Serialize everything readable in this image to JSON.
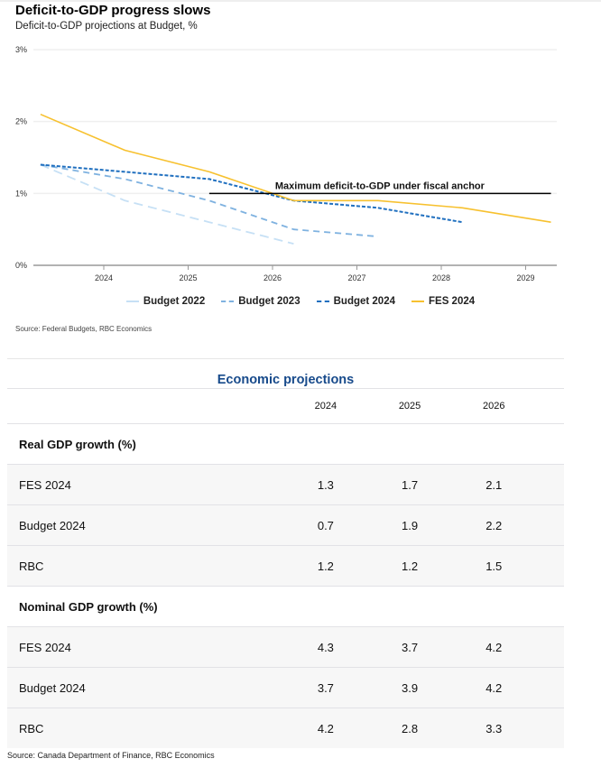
{
  "chart_data": {
    "type": "line",
    "title": "Deficit-to-GDP progress slows",
    "subtitle": "Deficit-to-GDP projections at Budget, %",
    "xlabel": "",
    "ylabel": "",
    "ylim": [
      0,
      3
    ],
    "xlim": [
      2023.25,
      2029.35
    ],
    "yticks": [
      0,
      1,
      2,
      3
    ],
    "ytick_labels": [
      "0%",
      "1%",
      "2%",
      "3%"
    ],
    "xticks": [
      2024,
      2025,
      2026,
      2027,
      2028,
      2029
    ],
    "xtick_labels": [
      "2024",
      "2025",
      "2026",
      "2027",
      "2028",
      "2029"
    ],
    "grid": true,
    "legend_position": "bottom-center",
    "series": [
      {
        "name": "Budget 2022",
        "color": "#c6e0f5",
        "dash": "long-dash",
        "x": [
          2023.25,
          2024.25,
          2025.25,
          2026.25
        ],
        "values": [
          1.4,
          0.9,
          0.6,
          0.3
        ]
      },
      {
        "name": "Budget 2023",
        "color": "#7fb2e0",
        "dash": "dash",
        "x": [
          2023.25,
          2024.25,
          2025.25,
          2026.25,
          2027.25
        ],
        "values": [
          1.4,
          1.2,
          0.9,
          0.5,
          0.4
        ]
      },
      {
        "name": "Budget 2024",
        "color": "#1f6fbf",
        "dash": "short-dash",
        "x": [
          2023.25,
          2024.25,
          2025.25,
          2026.25,
          2027.25,
          2028.25
        ],
        "values": [
          1.4,
          1.3,
          1.2,
          0.9,
          0.8,
          0.6
        ]
      },
      {
        "name": "FES 2024",
        "color": "#f7c12f",
        "dash": "solid",
        "x": [
          2023.25,
          2024.25,
          2025.25,
          2026.25,
          2027.25,
          2028.25,
          2029.3
        ],
        "values": [
          2.1,
          1.6,
          1.3,
          0.9,
          0.9,
          0.8,
          0.6
        ]
      }
    ],
    "annotations": [
      {
        "text": "Maximum deficit-to-GDP under fiscal anchor",
        "type": "hline",
        "y": 1.0,
        "x_from": 2025.25,
        "x_to": 2029.3,
        "color": "#000000"
      }
    ],
    "source": "Source: Federal Budgets, RBC Economics"
  },
  "table": {
    "title": "Economic projections",
    "title_color": "#174a8b",
    "columns": [
      "2024",
      "2025",
      "2026"
    ],
    "sections": [
      {
        "label": "Real GDP growth (%)",
        "rows": [
          {
            "label": "FES 2024",
            "values": [
              "1.3",
              "1.7",
              "2.1"
            ]
          },
          {
            "label": "Budget 2024",
            "values": [
              "0.7",
              "1.9",
              "2.2"
            ]
          },
          {
            "label": "RBC",
            "values": [
              "1.2",
              "1.2",
              "1.5"
            ]
          }
        ]
      },
      {
        "label": "Nominal GDP growth (%)",
        "rows": [
          {
            "label": "FES 2024",
            "values": [
              "4.3",
              "3.7",
              "4.2"
            ]
          },
          {
            "label": "Budget 2024",
            "values": [
              "3.7",
              "3.9",
              "4.2"
            ]
          },
          {
            "label": "RBC",
            "values": [
              "4.2",
              "2.8",
              "3.3"
            ]
          }
        ]
      }
    ],
    "source": "Source: Canada Department of Finance, RBC Economics"
  }
}
